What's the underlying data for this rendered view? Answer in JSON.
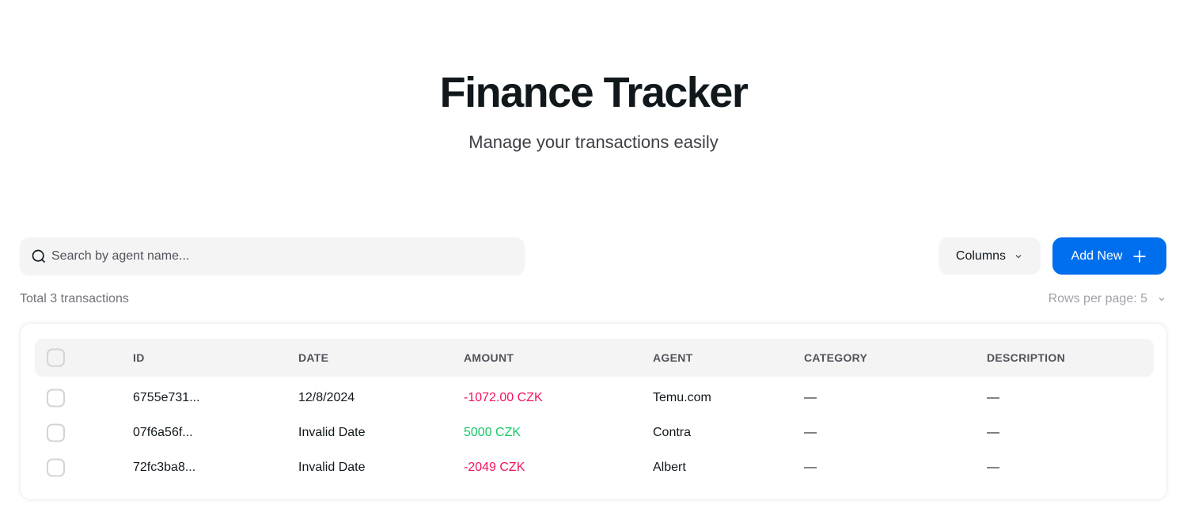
{
  "header": {
    "title": "Finance Tracker",
    "subtitle": "Manage your transactions easily"
  },
  "toolbar": {
    "search_placeholder": "Search by agent name...",
    "columns_label": "Columns",
    "add_label": "Add New"
  },
  "summary": {
    "total": "Total 3 transactions",
    "rows_per_page": "Rows per page: 5"
  },
  "colors": {
    "accent": "#006fee",
    "negative": "#f31260",
    "positive": "#17c964"
  },
  "table": {
    "columns": [
      "ID",
      "DATE",
      "AMOUNT",
      "AGENT",
      "CATEGORY",
      "DESCRIPTION"
    ],
    "rows": [
      {
        "id": "6755e731...",
        "date": "12/8/2024",
        "amount": "-1072.00 CZK",
        "amount_type": "neg",
        "agent": "Temu.com",
        "category": "—",
        "description": "—"
      },
      {
        "id": "07f6a56f...",
        "date": "Invalid Date",
        "amount": "5000 CZK",
        "amount_type": "pos",
        "agent": "Contra",
        "category": "—",
        "description": "—"
      },
      {
        "id": "72fc3ba8...",
        "date": "Invalid Date",
        "amount": "-2049 CZK",
        "amount_type": "neg",
        "agent": "Albert",
        "category": "—",
        "description": "—"
      }
    ]
  }
}
